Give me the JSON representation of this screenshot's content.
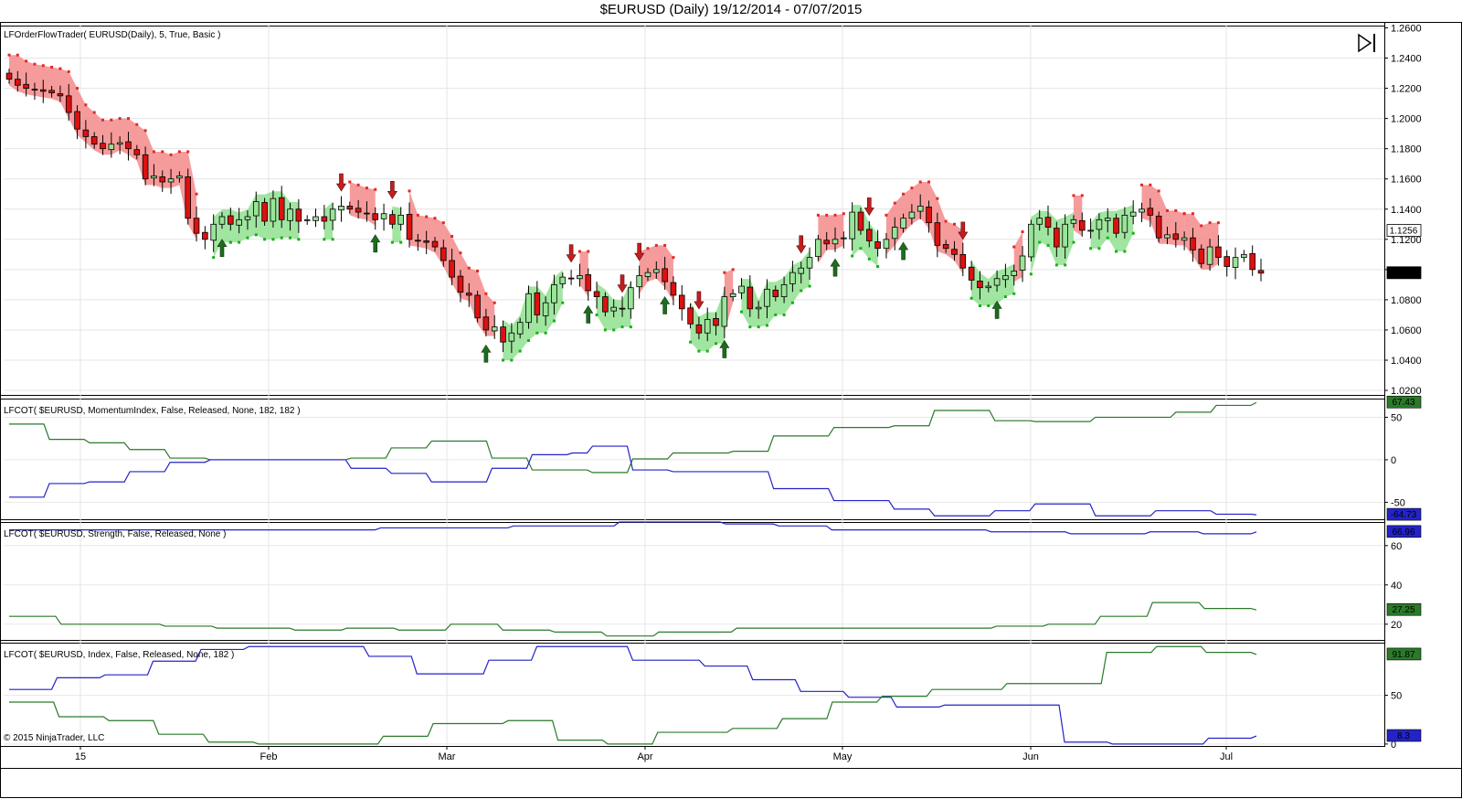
{
  "window": {
    "title": "$EURUSD (Daily)  19/12/2014 - 07/07/2015"
  },
  "panels": {
    "price": {
      "label": "LFOrderFlowTrader( EURUSD(Daily), 5, True, Basic )",
      "last_value": "1.0976",
      "marker_value": "1.1256"
    },
    "momentum": {
      "label": "LFCOT( $EURUSD, MomentumIndex, False, Released, None, 182, 182 )"
    },
    "strength": {
      "label": "LFCOT( $EURUSD, Strength, False, Released, None )"
    },
    "index": {
      "label": "LFCOT( $EURUSD, Index, False, Released, None, 182 )"
    }
  },
  "copyright": "© 2015 NinjaTrader, LLC",
  "icons": {
    "play_pause": "skip-end-icon"
  },
  "colors": {
    "bull": "#98e498",
    "bear": "#f08080",
    "band_green": "#8fe08f",
    "band_red": "#f58a8a",
    "line_green": "#2a7a2a",
    "line_blue": "#2323c8",
    "arrow_green": "#1f6b1f",
    "arrow_red": "#c41e1e"
  },
  "chart_data": [
    {
      "type": "candlestick",
      "title": "$EURUSD (Daily)  19/12/2014 - 07/07/2015",
      "x_tick_labels": [
        "15",
        "Feb",
        "Mar",
        "Apr",
        "May",
        "Jun",
        "Jul"
      ],
      "y_tick_labels": [
        "1.0200",
        "1.0400",
        "1.0600",
        "1.0800",
        "1.1000",
        "1.1200",
        "1.1400",
        "1.1600",
        "1.1800",
        "1.2000",
        "1.2200",
        "1.2400",
        "1.2600"
      ],
      "ylim": [
        1.017,
        1.2615
      ],
      "close_series": [
        1.226,
        1.222,
        1.22,
        1.219,
        1.218,
        1.217,
        1.215,
        1.204,
        1.193,
        1.188,
        1.183,
        1.18,
        1.183,
        1.184,
        1.18,
        1.176,
        1.16,
        1.162,
        1.158,
        1.16,
        1.162,
        1.134,
        1.124,
        1.12,
        1.13,
        1.135,
        1.13,
        1.133,
        1.135,
        1.145,
        1.132,
        1.147,
        1.133,
        1.14,
        1.132,
        1.133,
        1.135,
        1.132,
        1.14,
        1.142,
        1.14,
        1.138,
        1.137,
        1.133,
        1.137,
        1.13,
        1.136,
        1.12,
        1.119,
        1.118,
        1.115,
        1.106,
        1.095,
        1.085,
        1.083,
        1.068,
        1.06,
        1.062,
        1.052,
        1.058,
        1.065,
        1.084,
        1.07,
        1.078,
        1.09,
        1.095,
        1.094,
        1.096,
        1.086,
        1.082,
        1.072,
        1.075,
        1.074,
        1.088,
        1.096,
        1.098,
        1.1,
        1.092,
        1.083,
        1.074,
        1.064,
        1.058,
        1.067,
        1.063,
        1.082,
        1.084,
        1.089,
        1.074,
        1.075,
        1.087,
        1.082,
        1.09,
        1.098,
        1.101,
        1.108,
        1.12,
        1.117,
        1.12,
        1.121,
        1.138,
        1.126,
        1.119,
        1.114,
        1.12,
        1.128,
        1.134,
        1.138,
        1.142,
        1.131,
        1.116,
        1.114,
        1.11,
        1.101,
        1.093,
        1.088,
        1.089,
        1.094,
        1.096,
        1.099,
        1.109,
        1.13,
        1.134,
        1.128,
        1.115,
        1.13,
        1.133,
        1.126,
        1.126,
        1.133,
        1.134,
        1.124,
        1.136,
        1.138,
        1.14,
        1.136,
        1.121,
        1.123,
        1.12,
        1.121,
        1.113,
        1.104,
        1.115,
        1.108,
        1.102,
        1.108,
        1.11,
        1.1,
        1.0976
      ],
      "buy_arrows": [
        "late Jan",
        "late Feb",
        "mid Mar",
        "early Apr",
        "mid Apr",
        "late Apr",
        "mid May",
        "late May",
        "mid Jun"
      ],
      "sell_arrows": [
        "mid Feb",
        "late Feb",
        "late Mar",
        "early Apr",
        "mid Apr",
        "early May",
        "mid May",
        "early Jun",
        "late Jun"
      ]
    },
    {
      "type": "line",
      "title": "LFCOT( $EURUSD, MomentumIndex, False, Released, None, 182, 182 )",
      "y_tick_labels": [
        "50",
        "0",
        "-50"
      ],
      "ylim": [
        -70,
        72
      ],
      "series": [
        {
          "color": "green",
          "last_label": "67.43",
          "values": [
            42,
            42,
            24,
            24,
            20,
            20,
            12,
            12,
            2,
            2,
            0,
            0,
            0,
            0,
            0,
            0,
            0,
            2,
            2,
            14,
            14,
            22,
            22,
            22,
            2,
            2,
            -12,
            -12,
            -12,
            -15,
            -15,
            1,
            1,
            8,
            8,
            8,
            10,
            10,
            28,
            28,
            28,
            38,
            38,
            38,
            40,
            40,
            58,
            58,
            58,
            46,
            46,
            45,
            45,
            45,
            50,
            50,
            50,
            50,
            56,
            56,
            64,
            64,
            67.43
          ]
        },
        {
          "color": "blue",
          "last_label": "-64.73",
          "values": [
            -44,
            -44,
            -28,
            -28,
            -26,
            -26,
            -14,
            -14,
            -3,
            -3,
            0,
            0,
            0,
            0,
            0,
            0,
            0,
            -10,
            -10,
            -16,
            -16,
            -26,
            -26,
            -26,
            -10,
            -10,
            6,
            6,
            8,
            16,
            16,
            -12,
            -12,
            -14,
            -14,
            -14,
            -14,
            -14,
            -34,
            -34,
            -34,
            -48,
            -48,
            -48,
            -58,
            -58,
            -66,
            -66,
            -66,
            -60,
            -60,
            -52,
            -52,
            -52,
            -66,
            -66,
            -66,
            -60,
            -60,
            -60,
            -64,
            -64,
            -64.73
          ]
        }
      ]
    },
    {
      "type": "line",
      "title": "LFCOT( $EURUSD, Strength, False, Released, None )",
      "y_tick_labels": [
        "60",
        "40",
        "20"
      ],
      "ylim": [
        12,
        72
      ],
      "series": [
        {
          "color": "blue",
          "last_label": "66.96",
          "values": [
            68,
            68,
            68,
            68,
            68,
            68,
            68,
            68,
            68,
            68,
            68,
            68,
            68,
            68,
            69,
            69,
            69,
            69,
            69,
            70,
            70,
            70,
            70,
            72,
            72,
            72,
            72,
            71,
            71,
            70,
            70,
            68,
            68,
            68,
            68,
            68,
            68,
            67,
            67,
            67,
            66,
            66,
            66,
            67,
            67,
            66,
            66,
            66.96
          ]
        },
        {
          "color": "green",
          "last_label": "27.25",
          "values": [
            24,
            24,
            20,
            20,
            20,
            20,
            19,
            19,
            18,
            18,
            18,
            17,
            17,
            18,
            18,
            17,
            17,
            20,
            20,
            17,
            17,
            16,
            16,
            14,
            14,
            16,
            16,
            16,
            18,
            18,
            18,
            18,
            18,
            18,
            18,
            18,
            18,
            18,
            19,
            19,
            20,
            20,
            24,
            24,
            31,
            31,
            28,
            28,
            27.25
          ]
        }
      ]
    },
    {
      "type": "line",
      "title": "LFCOT( $EURUSD, Index, False, Released, None, 182 )",
      "y_tick_labels": [
        "50",
        "0"
      ],
      "ylim": [
        -2,
        104
      ],
      "series": [
        {
          "color": "blue",
          "last_label": "8.3",
          "values": [
            56,
            56,
            68,
            68,
            71,
            71,
            85,
            85,
            97,
            97,
            100,
            100,
            100,
            100,
            100,
            90,
            90,
            72,
            72,
            72,
            86,
            86,
            100,
            100,
            100,
            100,
            86,
            86,
            86,
            80,
            80,
            66,
            66,
            54,
            54,
            48,
            48,
            38,
            38,
            40,
            40,
            40,
            40,
            40,
            2,
            2,
            0,
            0,
            0,
            0,
            6,
            6,
            8.3
          ]
        },
        {
          "color": "green",
          "last_label": "91.87",
          "values": [
            43,
            43,
            28,
            28,
            24,
            24,
            10,
            10,
            2,
            2,
            0,
            0,
            0,
            0,
            0,
            8,
            8,
            21,
            21,
            21,
            24,
            24,
            4,
            4,
            0,
            0,
            12,
            12,
            12,
            16,
            16,
            26,
            26,
            43,
            43,
            49,
            49,
            56,
            56,
            56,
            62,
            62,
            62,
            62,
            94,
            94,
            100,
            100,
            94,
            94,
            91.87
          ]
        }
      ]
    }
  ]
}
